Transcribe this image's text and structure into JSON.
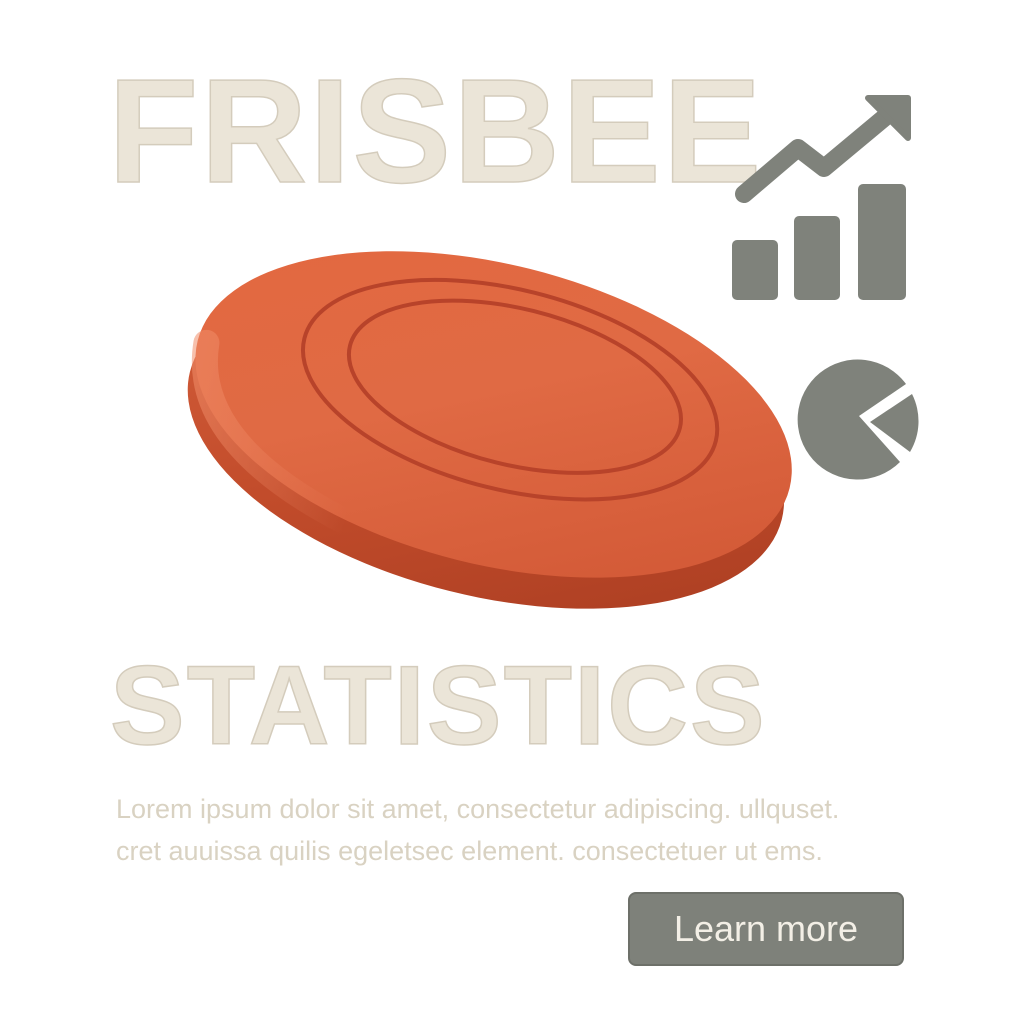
{
  "hero": {
    "title_top": "FRISBEE",
    "title_bottom": "STATISTICS",
    "body": "Lorem ipsum dolor sit amet, consectetur adipiscing. ullquset. cret auuissa quilis egeletsec element. consectetuer ut ems.",
    "cta_label": "Learn more"
  },
  "illustrations": {
    "main": "frisbee-disc",
    "icons": [
      "line-chart-icon",
      "bar-chart-icon",
      "pie-chart-icon"
    ]
  },
  "colors": {
    "accent_orange": "#e0603c",
    "icon_gray": "#7f827b",
    "headline_beige": "#ebe5d8",
    "body_text": "#d9d2c2",
    "button_bg": "#7e817a",
    "button_text": "#f3efe6"
  }
}
